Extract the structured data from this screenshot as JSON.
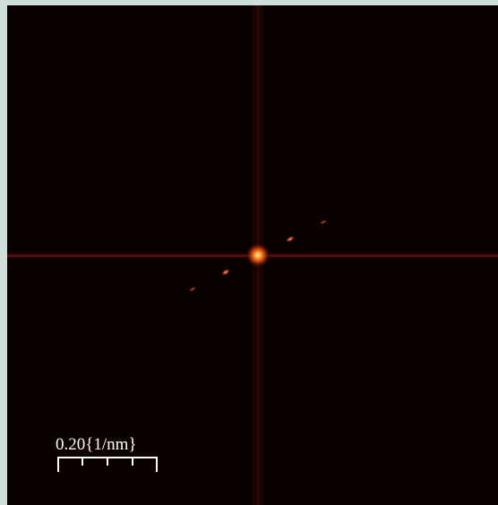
{
  "scale_bar": {
    "label": "0.20{1/nm}"
  }
}
